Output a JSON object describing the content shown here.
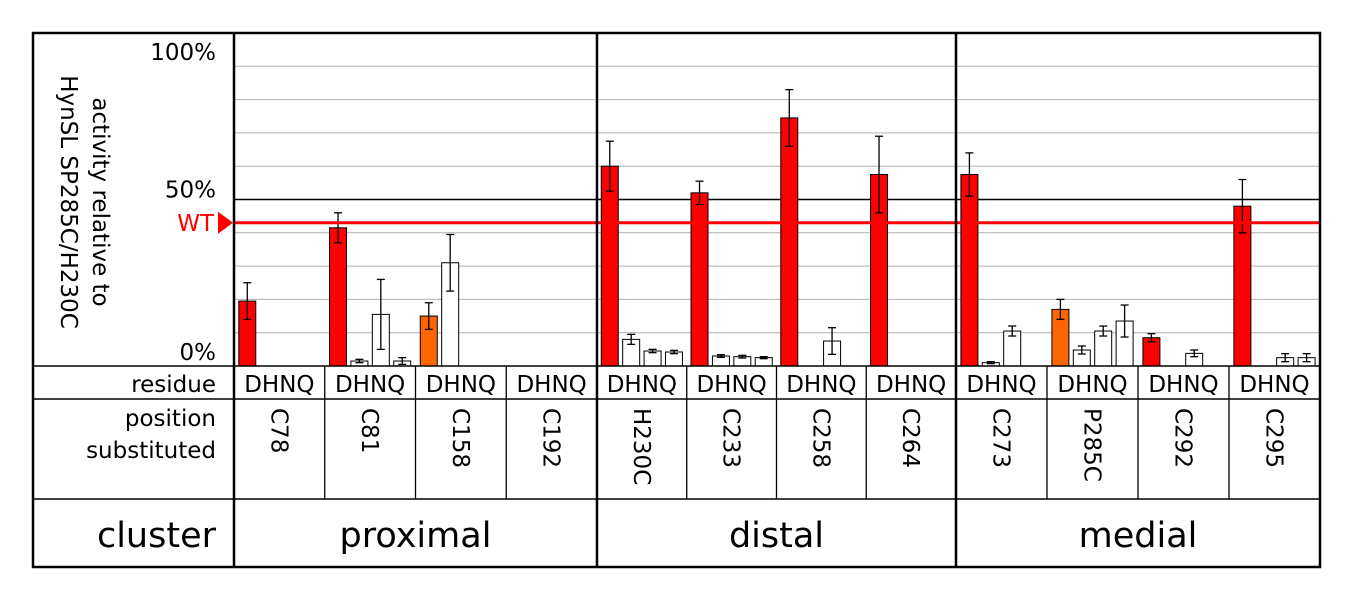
{
  "chart_data": {
    "type": "bar",
    "ylabel_lines": [
      "activity relative to",
      "HynSL SP285C/H230C"
    ],
    "y_ticks": [
      {
        "value": 0,
        "label": "0%"
      },
      {
        "value": 50,
        "label": "50%"
      },
      {
        "value": 100,
        "label": "100%"
      }
    ],
    "ylim": [
      0,
      100
    ],
    "grid": true,
    "reference_line": {
      "label": "WT",
      "value": 43,
      "color": "#ff0000"
    },
    "row_labels": {
      "residue": "residue",
      "position": [
        "position",
        "substituted"
      ],
      "cluster": "cluster"
    },
    "residue_letters": "DHNQ",
    "residues": [
      "D",
      "H",
      "N",
      "Q"
    ],
    "colors": {
      "red": "#ff0000",
      "orange": "#ff6600",
      "white": "#ffffff"
    },
    "clusters": [
      {
        "name": "proximal",
        "positions": [
          {
            "label": "C78",
            "bars": [
              {
                "residue": "D",
                "value": 19.5,
                "error": 5.5,
                "color": "red"
              }
            ]
          },
          {
            "label": "C81",
            "bars": [
              {
                "residue": "D",
                "value": 41.5,
                "error": 4.5,
                "color": "red"
              },
              {
                "residue": "H",
                "value": 1.5,
                "error": 0.5,
                "color": "white"
              },
              {
                "residue": "N",
                "value": 15.5,
                "error": 10.5,
                "color": "white"
              },
              {
                "residue": "Q",
                "value": 1.5,
                "error": 1.0,
                "color": "white"
              }
            ]
          },
          {
            "label": "C158",
            "bars": [
              {
                "residue": "D",
                "value": 15,
                "error": 4,
                "color": "orange"
              },
              {
                "residue": "H",
                "value": 31,
                "error": 8.5,
                "color": "white"
              }
            ]
          },
          {
            "label": "C192",
            "bars": []
          }
        ]
      },
      {
        "name": "distal",
        "positions": [
          {
            "label": "H230C",
            "bars": [
              {
                "residue": "D",
                "value": 60,
                "error": 7.5,
                "color": "red"
              },
              {
                "residue": "H",
                "value": 8,
                "error": 1.5,
                "color": "white"
              },
              {
                "residue": "N",
                "value": 4.5,
                "error": 0.5,
                "color": "white"
              },
              {
                "residue": "Q",
                "value": 4.2,
                "error": 0.5,
                "color": "white"
              }
            ]
          },
          {
            "label": "C233",
            "bars": [
              {
                "residue": "D",
                "value": 52,
                "error": 3.5,
                "color": "red"
              },
              {
                "residue": "H",
                "value": 3,
                "error": 0.4,
                "color": "white"
              },
              {
                "residue": "N",
                "value": 2.8,
                "error": 0.4,
                "color": "white"
              },
              {
                "residue": "Q",
                "value": 2.5,
                "error": 0.3,
                "color": "white"
              }
            ]
          },
          {
            "label": "C258",
            "bars": [
              {
                "residue": "D",
                "value": 74.5,
                "error": 8.5,
                "color": "red"
              },
              {
                "residue": "N",
                "value": 7.5,
                "error": 4,
                "color": "white"
              }
            ]
          },
          {
            "label": "C264",
            "bars": [
              {
                "residue": "D",
                "value": 57.5,
                "error": 11.5,
                "color": "red"
              }
            ]
          }
        ]
      },
      {
        "name": "medial",
        "positions": [
          {
            "label": "C273",
            "bars": [
              {
                "residue": "D",
                "value": 57.5,
                "error": 6.5,
                "color": "red"
              },
              {
                "residue": "H",
                "value": 1,
                "error": 0.3,
                "color": "white"
              },
              {
                "residue": "N",
                "value": 10.5,
                "error": 1.5,
                "color": "white"
              }
            ]
          },
          {
            "label": "P285C",
            "bars": [
              {
                "residue": "D",
                "value": 17,
                "error": 3,
                "color": "orange"
              },
              {
                "residue": "H",
                "value": 4.8,
                "error": 1.2,
                "color": "white"
              },
              {
                "residue": "N",
                "value": 10.5,
                "error": 1.5,
                "color": "white"
              },
              {
                "residue": "Q",
                "value": 13.5,
                "error": 4.8,
                "color": "white"
              }
            ]
          },
          {
            "label": "C292",
            "bars": [
              {
                "residue": "D",
                "value": 8.5,
                "error": 1.2,
                "color": "red"
              },
              {
                "residue": "N",
                "value": 3.8,
                "error": 1.0,
                "color": "white"
              }
            ]
          },
          {
            "label": "C295",
            "bars": [
              {
                "residue": "D",
                "value": 48,
                "error": 8,
                "color": "red"
              },
              {
                "residue": "N",
                "value": 2.5,
                "error": 1.2,
                "color": "white"
              },
              {
                "residue": "Q",
                "value": 2.5,
                "error": 1.2,
                "color": "white"
              }
            ]
          }
        ]
      }
    ]
  }
}
